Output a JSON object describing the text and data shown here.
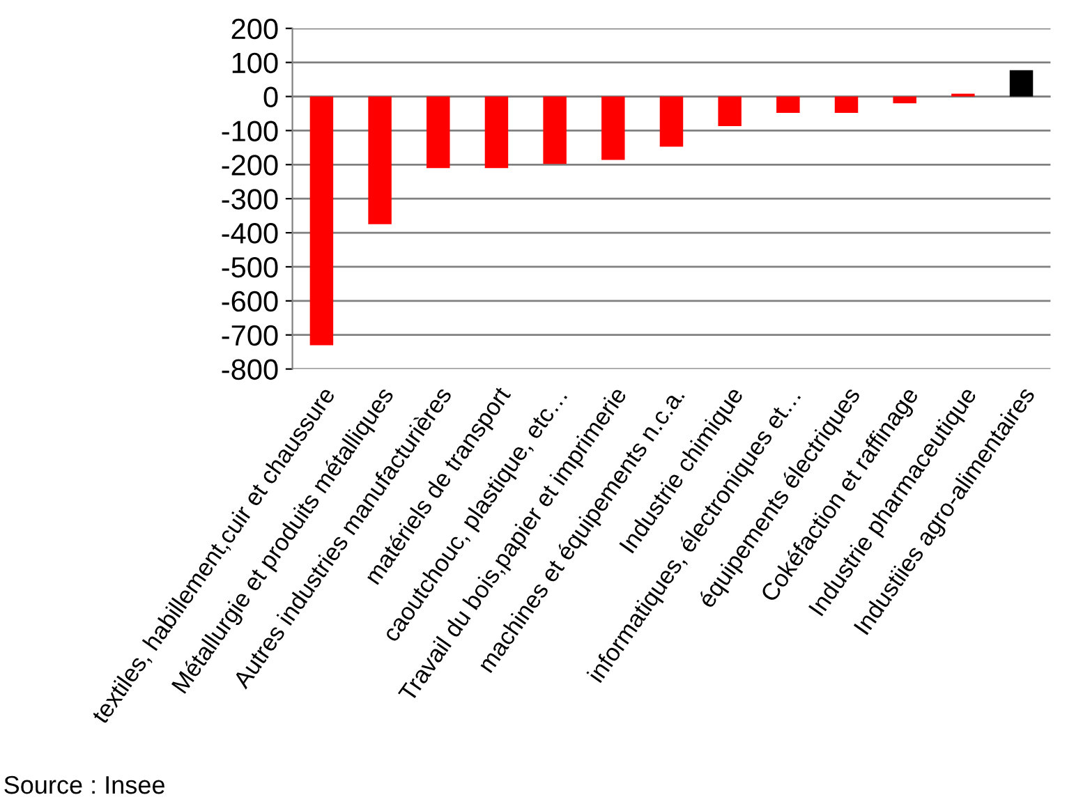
{
  "chart_data": {
    "type": "bar",
    "categories": [
      "textiles, habillement,cuir et chaussure",
      "Métallurgie et produits métalliques",
      "Autres industries manufacturières",
      "matériels de transport",
      "caoutchouc, plastique, etc…",
      "Travail du bois,papier et imprimerie",
      "machines et équipements n.c.a.",
      "Industrie chimique",
      "informatiques, électroniques et…",
      "équipements électriques",
      "Cokéfaction et raffinage",
      "Industrie pharmaceutique",
      "Industiies agro-alimentaires"
    ],
    "values": [
      -730,
      -375,
      -210,
      -210,
      -198,
      -186,
      -147,
      -87,
      -48,
      -48,
      -20,
      8,
      77
    ],
    "colors": [
      "#ff0000",
      "#ff0000",
      "#ff0000",
      "#ff0000",
      "#ff0000",
      "#ff0000",
      "#ff0000",
      "#ff0000",
      "#ff0000",
      "#ff0000",
      "#ff0000",
      "#ff0000",
      "#000000"
    ],
    "ylim": [
      -800,
      200
    ],
    "yticks": [
      -800,
      -700,
      -600,
      -500,
      -400,
      -300,
      -200,
      -100,
      0,
      100,
      200
    ],
    "grid": "y",
    "legend": false,
    "annotations": [
      "Source : Insee"
    ]
  }
}
